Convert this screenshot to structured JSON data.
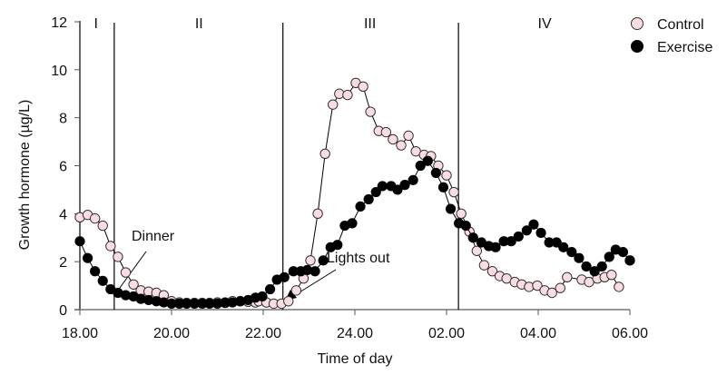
{
  "chart_data": {
    "type": "line",
    "title": "",
    "xlabel": "Time of day",
    "ylabel": "Growth hormone (µg/L)",
    "xlim": [
      0,
      12
    ],
    "ylim": [
      0,
      12
    ],
    "x_unit_note": "hours after 18.00",
    "x_ticks": [
      {
        "value": 0,
        "label": "18.00"
      },
      {
        "value": 2,
        "label": "20.00"
      },
      {
        "value": 4,
        "label": "22.00"
      },
      {
        "value": 6,
        "label": "24.00"
      },
      {
        "value": 8,
        "label": "02.00"
      },
      {
        "value": 10,
        "label": "04.00"
      },
      {
        "value": 12,
        "label": "06.00"
      }
    ],
    "y_ticks": [
      {
        "value": 0,
        "label": "0"
      },
      {
        "value": 2,
        "label": "2"
      },
      {
        "value": 4,
        "label": "4"
      },
      {
        "value": 6,
        "label": "6"
      },
      {
        "value": 8,
        "label": "8"
      },
      {
        "value": 10,
        "label": "10"
      },
      {
        "value": 12,
        "label": "12"
      }
    ],
    "grid": false,
    "legend": {
      "position": "top-right",
      "entries": [
        "Control",
        "Exercise"
      ]
    },
    "phases": [
      {
        "label": "I",
        "center": 0.35
      },
      {
        "label": "II",
        "center": 2.6
      },
      {
        "label": "III",
        "center": 6.33
      },
      {
        "label": "IV",
        "center": 10.14
      }
    ],
    "phase_boundaries": [
      0.75,
      4.43,
      8.26
    ],
    "annotations": [
      {
        "text": "Dinner",
        "x": 0.83,
        "y": 0.7
      },
      {
        "text": "Lights out",
        "x": 4.5,
        "y": 0.35
      }
    ],
    "series": [
      {
        "name": "Control",
        "marker": "open-circle",
        "fill": "#fadde3",
        "points": [
          [
            0.0,
            3.85
          ],
          [
            0.17,
            3.95
          ],
          [
            0.33,
            3.8
          ],
          [
            0.5,
            3.5
          ],
          [
            0.67,
            2.65
          ],
          [
            0.83,
            2.2
          ],
          [
            1.0,
            1.55
          ],
          [
            1.17,
            1.05
          ],
          [
            1.33,
            0.8
          ],
          [
            1.5,
            0.75
          ],
          [
            1.67,
            0.7
          ],
          [
            1.83,
            0.6
          ],
          [
            2.0,
            0.35
          ],
          [
            2.17,
            0.3
          ],
          [
            2.33,
            0.28
          ],
          [
            2.5,
            0.28
          ],
          [
            2.67,
            0.28
          ],
          [
            2.83,
            0.28
          ],
          [
            3.0,
            0.3
          ],
          [
            3.17,
            0.3
          ],
          [
            3.33,
            0.35
          ],
          [
            3.5,
            0.35
          ],
          [
            3.67,
            0.33
          ],
          [
            3.83,
            0.3
          ],
          [
            3.9,
            0.35
          ],
          [
            4.07,
            0.3
          ],
          [
            4.23,
            0.25
          ],
          [
            4.4,
            0.25
          ],
          [
            4.55,
            0.35
          ],
          [
            4.72,
            0.8
          ],
          [
            4.88,
            1.3
          ],
          [
            5.03,
            2.05
          ],
          [
            5.19,
            4.0
          ],
          [
            5.35,
            6.5
          ],
          [
            5.52,
            8.55
          ],
          [
            5.66,
            9.0
          ],
          [
            5.84,
            8.95
          ],
          [
            6.02,
            9.45
          ],
          [
            6.18,
            9.3
          ],
          [
            6.34,
            8.25
          ],
          [
            6.52,
            7.45
          ],
          [
            6.68,
            7.4
          ],
          [
            6.83,
            7.1
          ],
          [
            7.01,
            6.85
          ],
          [
            7.17,
            7.25
          ],
          [
            7.33,
            6.6
          ],
          [
            7.51,
            6.45
          ],
          [
            7.66,
            6.4
          ],
          [
            7.82,
            6.0
          ],
          [
            8.0,
            5.6
          ],
          [
            8.16,
            4.9
          ],
          [
            8.32,
            4.0
          ],
          [
            8.5,
            3.25
          ],
          [
            8.66,
            2.45
          ],
          [
            8.82,
            1.85
          ],
          [
            9.0,
            1.6
          ],
          [
            9.16,
            1.4
          ],
          [
            9.31,
            1.3
          ],
          [
            9.49,
            1.15
          ],
          [
            9.64,
            1.05
          ],
          [
            9.8,
            0.95
          ],
          [
            9.98,
            1.0
          ],
          [
            10.14,
            0.8
          ],
          [
            10.3,
            0.7
          ],
          [
            10.48,
            0.9
          ],
          [
            10.63,
            1.35
          ],
          [
            10.95,
            1.25
          ],
          [
            11.11,
            1.15
          ],
          [
            11.29,
            1.3
          ],
          [
            11.45,
            1.35
          ],
          [
            11.6,
            1.45
          ],
          [
            11.76,
            0.95
          ]
        ]
      },
      {
        "name": "Exercise",
        "marker": "filled-circle",
        "fill": "#000000",
        "points": [
          [
            0.0,
            2.85
          ],
          [
            0.17,
            2.15
          ],
          [
            0.33,
            1.6
          ],
          [
            0.5,
            1.2
          ],
          [
            0.67,
            0.85
          ],
          [
            0.83,
            0.7
          ],
          [
            1.0,
            0.6
          ],
          [
            1.17,
            0.55
          ],
          [
            1.33,
            0.45
          ],
          [
            1.5,
            0.4
          ],
          [
            1.67,
            0.35
          ],
          [
            1.83,
            0.3
          ],
          [
            2.0,
            0.25
          ],
          [
            2.17,
            0.25
          ],
          [
            2.33,
            0.25
          ],
          [
            2.5,
            0.25
          ],
          [
            2.67,
            0.25
          ],
          [
            2.83,
            0.25
          ],
          [
            3.0,
            0.25
          ],
          [
            3.17,
            0.28
          ],
          [
            3.33,
            0.3
          ],
          [
            3.5,
            0.35
          ],
          [
            3.67,
            0.4
          ],
          [
            3.83,
            0.5
          ],
          [
            3.98,
            0.55
          ],
          [
            4.15,
            0.85
          ],
          [
            4.3,
            1.25
          ],
          [
            4.46,
            1.35
          ],
          [
            4.66,
            1.6
          ],
          [
            4.82,
            1.6
          ],
          [
            4.96,
            1.65
          ],
          [
            5.13,
            1.6
          ],
          [
            5.31,
            2.05
          ],
          [
            5.47,
            2.6
          ],
          [
            5.62,
            2.7
          ],
          [
            5.78,
            3.5
          ],
          [
            5.94,
            3.6
          ],
          [
            6.12,
            4.3
          ],
          [
            6.3,
            4.6
          ],
          [
            6.46,
            4.9
          ],
          [
            6.6,
            5.15
          ],
          [
            6.79,
            5.15
          ],
          [
            6.93,
            5.0
          ],
          [
            7.09,
            5.2
          ],
          [
            7.27,
            5.4
          ],
          [
            7.43,
            6.0
          ],
          [
            7.59,
            6.2
          ],
          [
            7.77,
            5.7
          ],
          [
            7.93,
            5.1
          ],
          [
            8.09,
            4.2
          ],
          [
            8.27,
            3.6
          ],
          [
            8.42,
            3.5
          ],
          [
            8.58,
            3.0
          ],
          [
            8.76,
            2.8
          ],
          [
            8.92,
            2.65
          ],
          [
            9.07,
            2.6
          ],
          [
            9.25,
            2.85
          ],
          [
            9.41,
            2.85
          ],
          [
            9.57,
            3.05
          ],
          [
            9.75,
            3.3
          ],
          [
            9.9,
            3.55
          ],
          [
            10.06,
            3.2
          ],
          [
            10.24,
            2.8
          ],
          [
            10.4,
            2.8
          ],
          [
            10.55,
            2.6
          ],
          [
            10.73,
            2.4
          ],
          [
            10.89,
            2.15
          ],
          [
            11.05,
            1.8
          ],
          [
            11.23,
            1.6
          ],
          [
            11.39,
            1.8
          ],
          [
            11.55,
            2.2
          ],
          [
            11.69,
            2.5
          ],
          [
            11.85,
            2.4
          ],
          [
            12.0,
            2.05
          ],
          [
            12.0,
            2.05
          ]
        ]
      }
    ]
  }
}
